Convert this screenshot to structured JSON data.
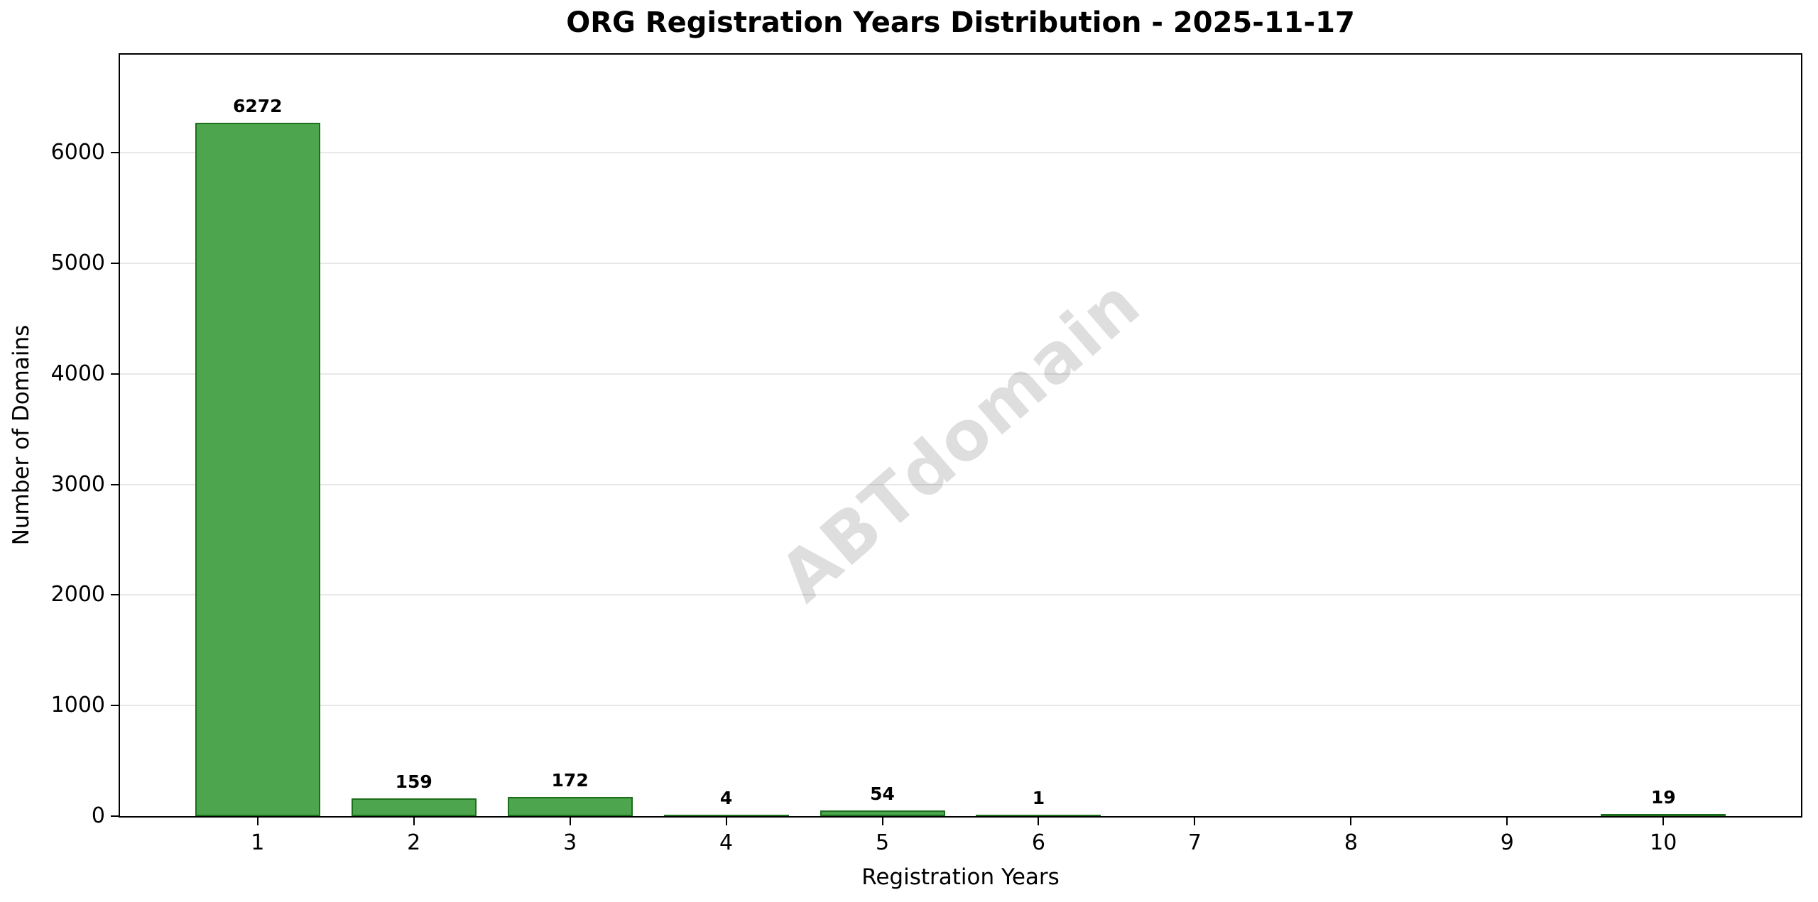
{
  "chart_data": {
    "type": "bar",
    "title": "ORG Registration Years Distribution - 2025-11-17",
    "xlabel": "Registration Years",
    "ylabel": "Number of Domains",
    "categories": [
      "1",
      "2",
      "3",
      "4",
      "5",
      "6",
      "7",
      "8",
      "9",
      "10"
    ],
    "x": [
      1,
      2,
      3,
      4,
      5,
      6,
      7,
      8,
      9,
      10
    ],
    "values": [
      6272,
      159,
      172,
      4,
      54,
      1,
      0,
      0,
      0,
      19
    ],
    "bar_labels": [
      "6272",
      "159",
      "172",
      "4",
      "54",
      "1",
      "",
      "",
      "",
      "19"
    ],
    "xlim": [
      0.11,
      10.89
    ],
    "ylim": [
      0,
      6900
    ],
    "yticks": [
      0,
      1000,
      2000,
      3000,
      4000,
      5000,
      6000
    ],
    "ytick_labels": [
      "0",
      "1000",
      "2000",
      "3000",
      "4000",
      "5000",
      "6000"
    ],
    "bar_width": 0.8,
    "bar_color": "#4da64d",
    "bar_edge_color": "#1b6e1b",
    "grid": true,
    "gridline_color": "#e8e8e8",
    "legend": null,
    "watermark": "ABTdomain",
    "background_color": "#ffffff"
  }
}
